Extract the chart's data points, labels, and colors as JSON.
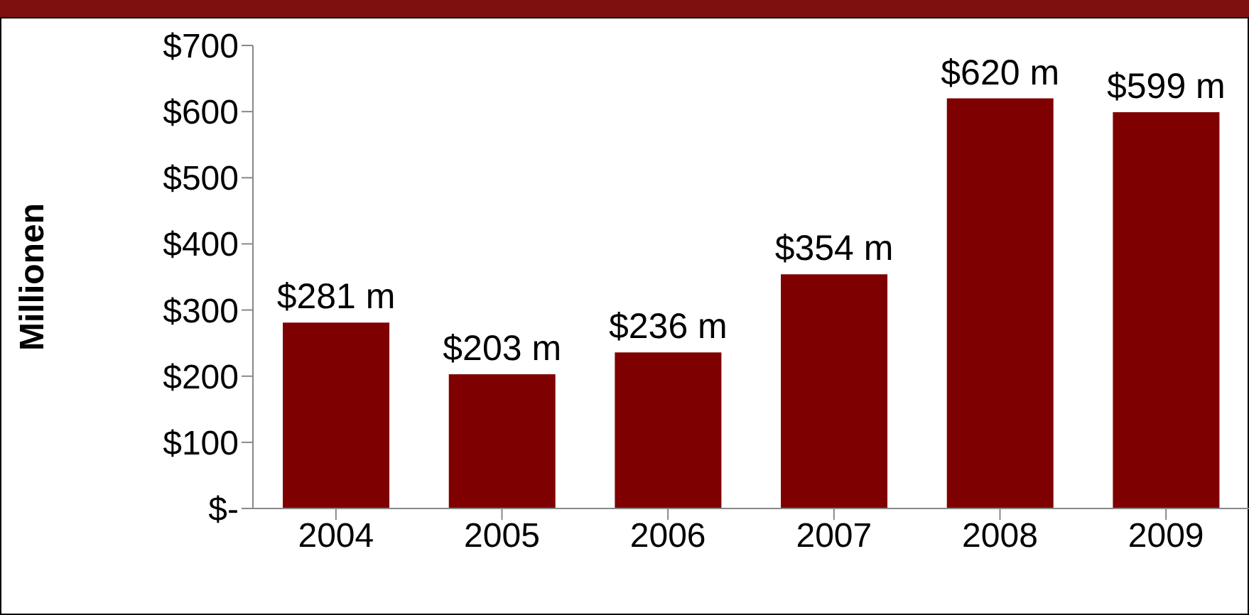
{
  "chart_data": {
    "type": "bar",
    "ylabel": "Millionen",
    "categories": [
      "2004",
      "2005",
      "2006",
      "2007",
      "2008",
      "2009"
    ],
    "values": [
      281,
      203,
      236,
      354,
      620,
      599
    ],
    "value_labels": [
      "$281 m",
      "$203 m",
      "$236 m",
      "$354 m",
      "$620 m",
      "$599 m"
    ],
    "color": "#7f0000",
    "ylim": [
      0,
      700
    ],
    "yticks": [
      {
        "value": 0,
        "label": "$-"
      },
      {
        "value": 100,
        "label": "$100"
      },
      {
        "value": 200,
        "label": "$200"
      },
      {
        "value": 300,
        "label": "$300"
      },
      {
        "value": 400,
        "label": "$400"
      },
      {
        "value": 500,
        "label": "$500"
      },
      {
        "value": 600,
        "label": "$600"
      },
      {
        "value": 700,
        "label": "$700"
      }
    ],
    "grid": false
  }
}
